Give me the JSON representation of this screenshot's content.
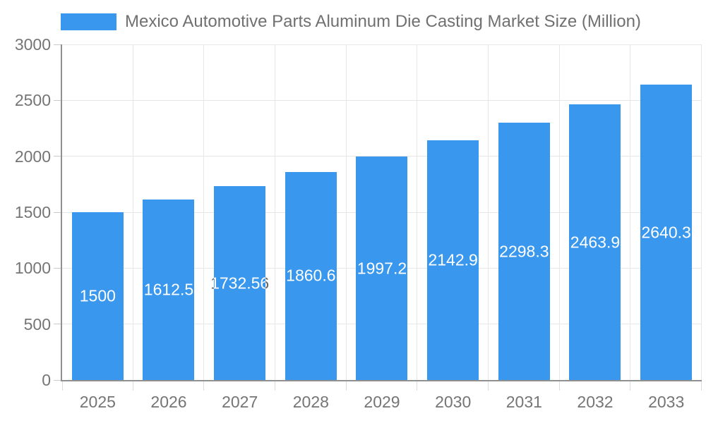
{
  "legend": {
    "title": "Mexico Automotive Parts Aluminum Die Casting Market Size (Million)"
  },
  "chart_data": {
    "type": "bar",
    "title": "Mexico Automotive Parts Aluminum Die Casting Market Size (Million)",
    "series_name": "Mexico Automotive Parts Aluminum Die Casting Market Size (Million)",
    "categories": [
      "2025",
      "2026",
      "2027",
      "2028",
      "2029",
      "2030",
      "2031",
      "2032",
      "2033"
    ],
    "values": [
      1500,
      1612.5,
      1732.56,
      1860.6,
      1997.2,
      2142.9,
      2298.3,
      2463.9,
      2640.3
    ],
    "bar_labels": [
      "1500",
      "1612.5",
      "1732.56",
      "1860.6",
      "1997.2",
      "2142.9",
      "2298.3",
      "2463.9",
      "2640.3"
    ],
    "xlabel": "",
    "ylabel": "",
    "ylim": [
      0,
      3000
    ],
    "yticks": [
      0,
      500,
      1000,
      1500,
      2000,
      2500,
      3000
    ],
    "grid": true,
    "legend_position": "top"
  },
  "colors": {
    "bar": "#3998EE",
    "gridline": "#E7E7E7",
    "axis_line": "#909090",
    "y_tick_mark": "#C9C9C9",
    "x_tick_mark": "#DCDCDC",
    "axis_text": "#757575",
    "annotation_inside": "#FFFFFF",
    "annotation_outside": "#666666",
    "background": "#FFFFFF"
  }
}
